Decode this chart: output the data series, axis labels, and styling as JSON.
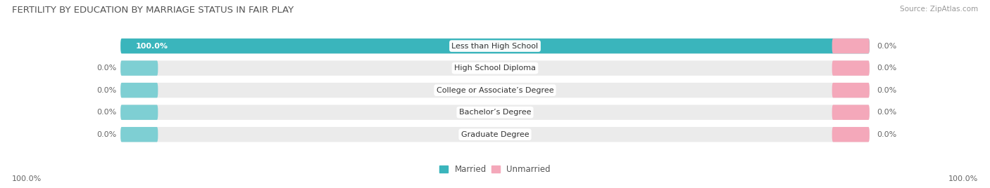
{
  "title": "FERTILITY BY EDUCATION BY MARRIAGE STATUS IN FAIR PLAY",
  "source": "Source: ZipAtlas.com",
  "categories": [
    "Less than High School",
    "High School Diploma",
    "College or Associate’s Degree",
    "Bachelor’s Degree",
    "Graduate Degree"
  ],
  "married_values": [
    100.0,
    0.0,
    0.0,
    0.0,
    0.0
  ],
  "unmarried_values": [
    0.0,
    0.0,
    0.0,
    0.0,
    0.0
  ],
  "married_color": "#3ab5bc",
  "married_light_color": "#7ecfd3",
  "unmarried_color": "#f4a8ba",
  "bar_bg_color": "#ebebeb",
  "label_left_married": [
    100.0,
    0.0,
    0.0,
    0.0,
    0.0
  ],
  "label_right_unmarried": [
    0.0,
    0.0,
    0.0,
    0.0,
    0.0
  ],
  "bottom_left_label": "100.0%",
  "bottom_right_label": "100.0%",
  "title_fontsize": 9.5,
  "source_fontsize": 7.5,
  "label_fontsize": 8,
  "category_fontsize": 8,
  "legend_married": "Married",
  "legend_unmarried": "Unmarried",
  "small_bar_width": 10,
  "max_val": 100
}
